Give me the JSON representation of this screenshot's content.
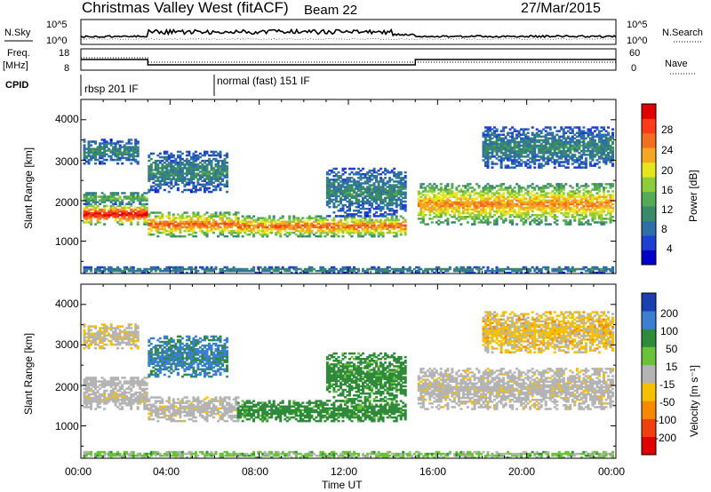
{
  "header": {
    "title": "Christmas Valley West (fitACF)",
    "beam": "Beam 22",
    "date": "27/Mar/2015"
  },
  "strip": {
    "nsky_label": "N.Sky",
    "nsearch_label": "N.Search",
    "noise_ticks_left": [
      "10^5",
      "10^0"
    ],
    "noise_ticks_right": [
      "10^5",
      "10^0"
    ],
    "freq_label_1": "Freq.",
    "freq_label_2": "[MHz]",
    "freq_ticks": [
      "18",
      "8"
    ],
    "nave_label": "Nave",
    "nave_ticks": [
      "60",
      "0"
    ],
    "cpid_label": "CPID",
    "cpid_1": "rbsp 201 IF",
    "cpid_2": "normal (fast) 151 IF"
  },
  "power_panel": {
    "ylabel": "Slant Range [km]",
    "yticks": [
      "4000",
      "3000",
      "2000",
      "1000"
    ],
    "cbar_label": "Power [dB]",
    "cbar_ticks": [
      "28",
      "24",
      "20",
      "16",
      "12",
      "8",
      "4"
    ],
    "cbar_colors": [
      "#0000c8",
      "#1f3fd0",
      "#2f6fa8",
      "#3a8a6a",
      "#55aa55",
      "#8fcc3a",
      "#e6e61e",
      "#f5a623",
      "#f07020",
      "#ff3a1a",
      "#e00000"
    ]
  },
  "velocity_panel": {
    "ylabel": "Slant Range [km]",
    "yticks": [
      "4000",
      "3000",
      "2000",
      "1000"
    ],
    "cbar_label": "Velocity [m s⁻¹]",
    "cbar_ticks": [
      "200",
      "100",
      "50",
      "15",
      "-15",
      "-50",
      "-100",
      "-200"
    ],
    "cbar_colors": [
      "#1a3fb0",
      "#3a7fd0",
      "#2f8a3a",
      "#6ac23a",
      "#b4b4b4",
      "#f5c000",
      "#f58a00",
      "#f04010",
      "#e00000"
    ]
  },
  "x_axis": {
    "label": "Time UT",
    "ticks": [
      "00:00",
      "04:00",
      "08:00",
      "12:00",
      "16:00",
      "20:00",
      "00:00"
    ]
  },
  "chart_data": {
    "type": "heatmap",
    "xlabel": "Time UT",
    "ylabel": "Slant Range [km]",
    "xlim_hours": [
      0,
      24
    ],
    "ylim_km": [
      200,
      4500
    ],
    "frequency_mhz": [
      {
        "start": 0,
        "end": 3.0,
        "value": 13
      },
      {
        "start": 3.0,
        "end": 15.0,
        "value": 10.5
      },
      {
        "start": 15.0,
        "end": 24,
        "value": 13
      }
    ],
    "cpid": [
      {
        "start": 0,
        "end": 6.0,
        "name": "rbsp 201 IF"
      },
      {
        "start": 6.0,
        "end": 24,
        "name": "normal (fast) 151 IF"
      }
    ],
    "scatter_bands": [
      {
        "t0": 0.1,
        "t1": 3.0,
        "r0": 1400,
        "r1": 1900,
        "power": 26,
        "velocity": -5
      },
      {
        "t0": 0.1,
        "t1": 3.0,
        "r0": 1900,
        "r1": 2200,
        "power": 12,
        "velocity": 0
      },
      {
        "t0": 0.1,
        "t1": 2.6,
        "r0": 2900,
        "r1": 3500,
        "power": 8,
        "velocity": -10
      },
      {
        "t0": 3.0,
        "t1": 7.0,
        "r0": 1100,
        "r1": 1700,
        "power": 22,
        "velocity": -5
      },
      {
        "t0": 3.0,
        "t1": 6.5,
        "r0": 2200,
        "r1": 3200,
        "power": 8,
        "velocity": 80
      },
      {
        "t0": 7.0,
        "t1": 14.5,
        "r0": 1100,
        "r1": 1600,
        "power": 22,
        "velocity": 40
      },
      {
        "t0": 11.0,
        "t1": 14.5,
        "r0": 1600,
        "r1": 2800,
        "power": 8,
        "velocity": 40
      },
      {
        "t0": 15.1,
        "t1": 23.9,
        "r0": 1400,
        "r1": 2400,
        "power": 20,
        "velocity": -5
      },
      {
        "t0": 18.0,
        "t1": 23.9,
        "r0": 2800,
        "r1": 3800,
        "power": 8,
        "velocity": -20
      },
      {
        "t0": 0.1,
        "t1": 23.9,
        "r0": 200,
        "r1": 350,
        "power": 8,
        "velocity": 20
      }
    ]
  }
}
